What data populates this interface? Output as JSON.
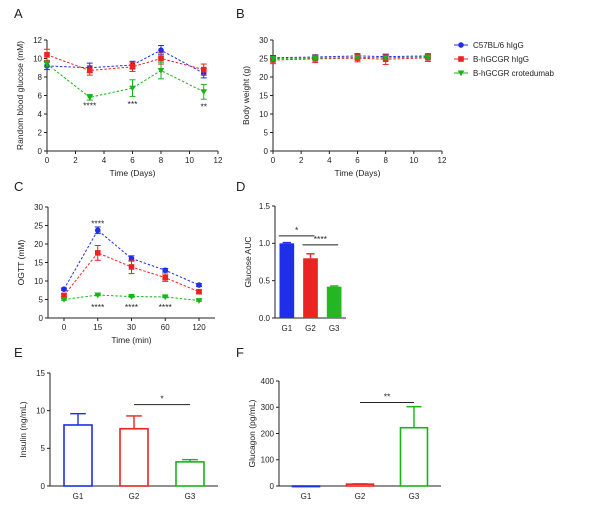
{
  "colors": {
    "blue": "#1f2ee8",
    "red": "#ea2323",
    "green": "#1ab31a",
    "axis": "#222222",
    "blue_fill": "#1f2ee8",
    "red_fill": "#ea2323",
    "green_fill": "#23b823"
  },
  "chart_data": [
    {
      "panel": "A",
      "type": "line",
      "xlabel": "Time (Days)",
      "ylabel": "Random blood glucose (mM)",
      "xlim": [
        0,
        12
      ],
      "ylim": [
        0,
        12
      ],
      "xticks": [
        "0",
        "2",
        "4",
        "6",
        "8",
        "10",
        "12"
      ],
      "yticks": [
        "0",
        "2",
        "4",
        "6",
        "8",
        "10",
        "12"
      ],
      "x": [
        0,
        3,
        6,
        8,
        11
      ],
      "series": [
        {
          "name": "C57BL/6 hIgG",
          "color": "blue",
          "marker": "circle",
          "values": [
            9.2,
            9.0,
            9.3,
            10.9,
            8.4
          ],
          "errors": [
            0.4,
            0.5,
            0.4,
            0.5,
            0.5
          ]
        },
        {
          "name": "B-hGCGR hIgG",
          "color": "red",
          "marker": "square",
          "values": [
            10.4,
            8.7,
            9.1,
            10.0,
            8.8
          ],
          "errors": [
            0.6,
            0.5,
            0.5,
            0.6,
            0.6
          ]
        },
        {
          "name": "B-hGCGR crotedumab",
          "color": "green",
          "marker": "triangle",
          "values": [
            9.4,
            5.8,
            6.8,
            8.7,
            6.4
          ],
          "errors": [
            0.3,
            0.3,
            0.9,
            0.9,
            0.8
          ]
        }
      ],
      "annotations": [
        {
          "x": 3,
          "y": 4.9,
          "text": "****"
        },
        {
          "x": 6,
          "y": 5.1,
          "text": "***"
        },
        {
          "x": 11,
          "y": 4.8,
          "text": "**"
        }
      ]
    },
    {
      "panel": "B",
      "type": "line",
      "xlabel": "Time (Days)",
      "ylabel": "Body weight (g)",
      "xlim": [
        0,
        12
      ],
      "ylim": [
        0,
        30
      ],
      "xticks": [
        "0",
        "2",
        "4",
        "6",
        "8",
        "10",
        "12"
      ],
      "yticks": [
        "0",
        "5",
        "10",
        "15",
        "20",
        "25",
        "30"
      ],
      "x": [
        0,
        3,
        6,
        8,
        11
      ],
      "series": [
        {
          "name": "C57BL/6 hIgG",
          "color": "blue",
          "marker": "circle",
          "values": [
            25.2,
            25.4,
            25.7,
            25.5,
            25.7
          ],
          "errors": [
            0.6,
            0.6,
            0.6,
            0.6,
            0.6
          ]
        },
        {
          "name": "B-hGCGR hIgG",
          "color": "red",
          "marker": "square",
          "values": [
            24.6,
            24.9,
            25.1,
            24.8,
            25.2
          ],
          "errors": [
            1.0,
            1.0,
            1.0,
            1.4,
            1.0
          ]
        },
        {
          "name": "B-hGCGR crotedumab",
          "color": "green",
          "marker": "triangle",
          "values": [
            25.0,
            25.1,
            25.3,
            25.2,
            25.4
          ],
          "errors": [
            0.5,
            0.5,
            0.5,
            0.5,
            0.5
          ]
        }
      ],
      "legend": {
        "placement": "right",
        "entries": [
          "C57BL/6 hIgG",
          "B-hGCGR hIgG",
          "B-hGCGR crotedumab"
        ]
      }
    },
    {
      "panel": "C",
      "type": "line",
      "xlabel": "Time (min)",
      "ylabel": "OGTT (mM)",
      "ylim": [
        0,
        30
      ],
      "categories": [
        "0",
        "15",
        "30",
        "60",
        "120"
      ],
      "yticks": [
        "0",
        "5",
        "10",
        "15",
        "20",
        "25",
        "30"
      ],
      "series": [
        {
          "name": "C57BL/6 hIgG",
          "color": "blue",
          "marker": "circle",
          "values": [
            7.8,
            23.7,
            16.1,
            12.9,
            8.9
          ],
          "errors": [
            0.3,
            0.9,
            0.7,
            0.5,
            0.4
          ]
        },
        {
          "name": "B-hGCGR hIgG",
          "color": "red",
          "marker": "square",
          "values": [
            6.1,
            17.6,
            13.8,
            10.9,
            7.1
          ],
          "errors": [
            0.4,
            2.0,
            1.8,
            1.0,
            0.4
          ]
        },
        {
          "name": "B-hGCGR crotedumab",
          "color": "green",
          "marker": "triangle",
          "values": [
            5.0,
            6.2,
            5.8,
            5.7,
            4.7
          ],
          "errors": [
            0.2,
            0.2,
            0.2,
            0.2,
            0.2
          ]
        }
      ],
      "annotations": [
        {
          "cat": 1,
          "y": 25.6,
          "text": "****"
        },
        {
          "cat": 1,
          "y": 3.0,
          "text": "****"
        },
        {
          "cat": 2,
          "y": 3.0,
          "text": "****"
        },
        {
          "cat": 3,
          "y": 3.0,
          "text": "****"
        }
      ]
    },
    {
      "panel": "D",
      "type": "bar",
      "ylabel": "Glucose AUC",
      "ylim": [
        0,
        1.5
      ],
      "yticks": [
        "0.0",
        "0.5",
        "1.0",
        "1.5"
      ],
      "categories": [
        "G1",
        "G2",
        "G3"
      ],
      "values": [
        1.0,
        0.8,
        0.42
      ],
      "errors": [
        0.01,
        0.06,
        0.01
      ],
      "bar_colors": [
        "blue_fill",
        "red_fill",
        "green_fill"
      ],
      "filled": true,
      "significance": [
        {
          "from": 0,
          "to": 1,
          "y": 1.1,
          "text": "*"
        },
        {
          "from": 1,
          "to": 2,
          "y": 0.98,
          "text": "****"
        }
      ]
    },
    {
      "panel": "E",
      "type": "bar",
      "ylabel": "Insulin (ng/mL)",
      "ylim": [
        0,
        15
      ],
      "yticks": [
        "0",
        "5",
        "10",
        "15"
      ],
      "categories": [
        "G1",
        "G2",
        "G3"
      ],
      "values": [
        8.1,
        7.6,
        3.2
      ],
      "errors": [
        1.5,
        1.7,
        0.3
      ],
      "bar_colors": [
        "blue",
        "red",
        "green"
      ],
      "filled": false,
      "significance": [
        {
          "from": 1,
          "to": 2,
          "y": 10.8,
          "text": "*"
        }
      ]
    },
    {
      "panel": "F",
      "type": "bar",
      "ylabel": "Glucagon (pg/mL)",
      "ylim": [
        0,
        400
      ],
      "yticks": [
        "0",
        "100",
        "200",
        "300",
        "400"
      ],
      "categories": [
        "G1",
        "G2",
        "G3"
      ],
      "values": [
        0,
        7,
        222
      ],
      "errors": [
        0,
        1,
        80
      ],
      "bar_colors": [
        "blue",
        "red",
        "green"
      ],
      "filled": false,
      "significance": [
        {
          "from": 1,
          "to": 2,
          "y": 318,
          "text": "**"
        }
      ]
    }
  ]
}
